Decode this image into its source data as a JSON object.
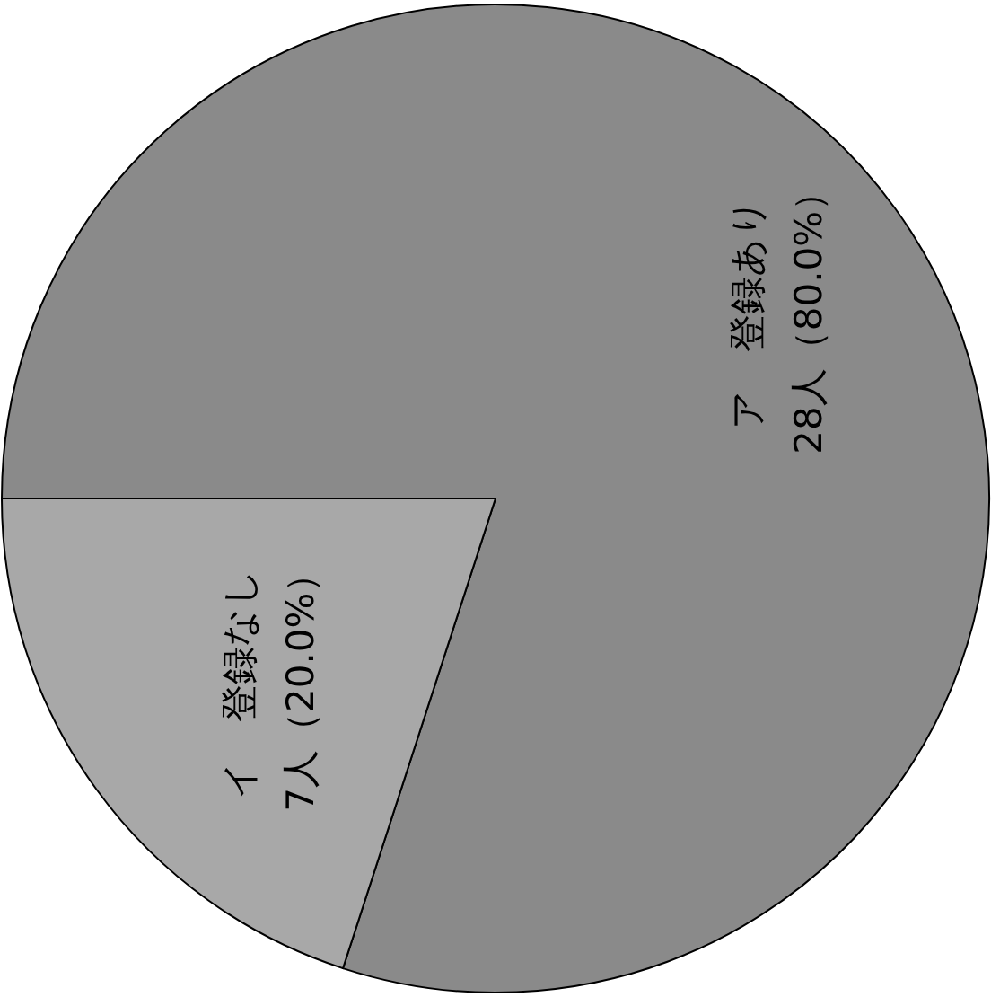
{
  "chart_data": {
    "type": "pie",
    "categories": [
      "ア　登録あり",
      "イ　登録なし"
    ],
    "values": [
      28,
      7
    ],
    "value_labels": [
      "28人（80.0%）",
      "7人（20.0%）"
    ],
    "colors": [
      "#8a8a8a",
      "#a8a8a8"
    ]
  }
}
